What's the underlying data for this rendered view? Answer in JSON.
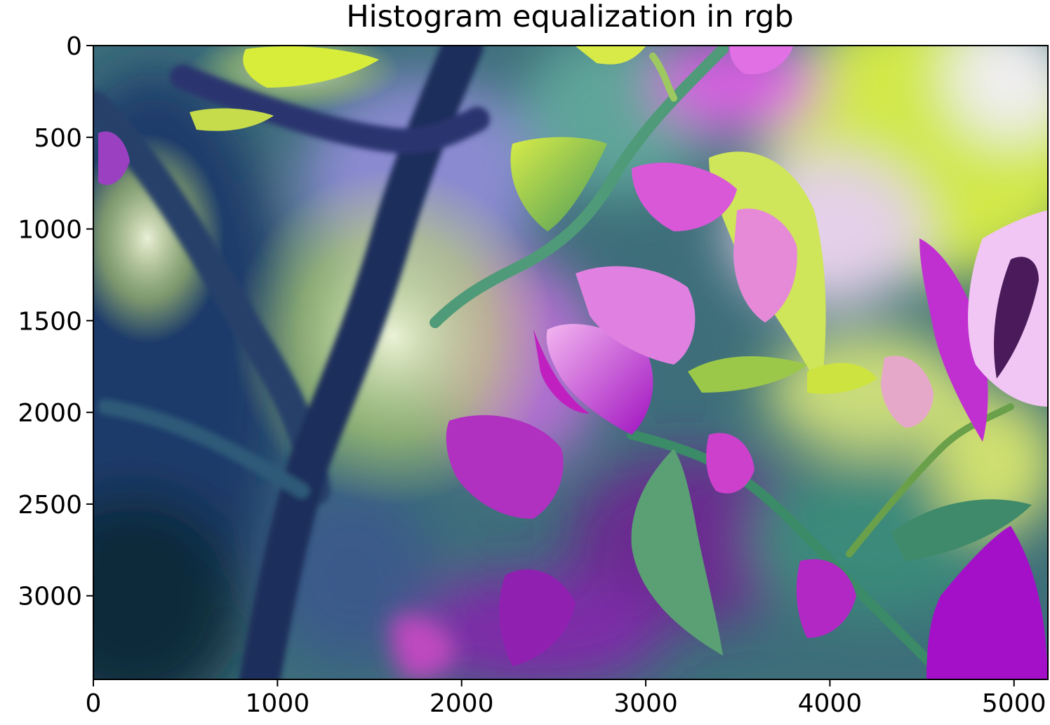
{
  "chart_data": {
    "type": "image",
    "title": "Histogram equalization in rgb",
    "xlim": [
      0,
      5184
    ],
    "ylim": [
      3456,
      0
    ],
    "xticks": [
      0,
      1000,
      2000,
      3000,
      4000,
      5000
    ],
    "yticks": [
      0,
      500,
      1000,
      1500,
      2000,
      2500,
      3000
    ],
    "xtick_labels": [
      "0",
      "1000",
      "2000",
      "3000",
      "4000",
      "5000"
    ],
    "ytick_labels": [
      "0",
      "500",
      "1000",
      "1500",
      "2000",
      "2500",
      "3000"
    ],
    "image_subject": "macro photo of magenta bougainvillea flowers and green leaves on a branch, histogram-equalized colors",
    "colors": {
      "magenta": "#b21bd0",
      "pink": "#e060e8",
      "leaf_green": "#2f8a70",
      "yellow_green": "#cde640",
      "teal": "#4fa8b8",
      "navy": "#1c2a5a",
      "pale": "#e8f0d8"
    }
  }
}
